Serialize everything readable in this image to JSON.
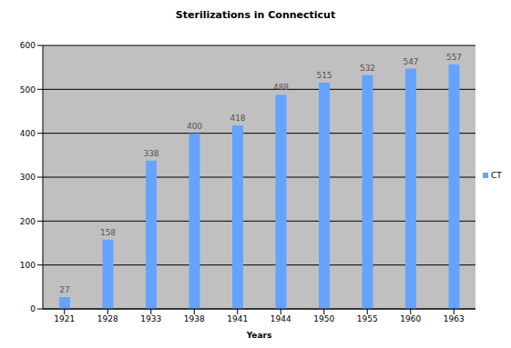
{
  "chart_data": {
    "type": "bar",
    "title": "Sterilizations in Connecticut",
    "xlabel": "Years",
    "categories": [
      "1921",
      "1928",
      "1933",
      "1938",
      "1941",
      "1944",
      "1950",
      "1955",
      "1960",
      "1963"
    ],
    "series": [
      {
        "name": "CT",
        "color": "#66a3ff",
        "values": [
          27,
          158,
          338,
          400,
          418,
          488,
          515,
          532,
          547,
          557
        ]
      }
    ],
    "ylim": [
      0,
      600
    ],
    "yticks": [
      0,
      100,
      200,
      300,
      400,
      500,
      600
    ],
    "grid": true,
    "legend": "right",
    "data_labels": true
  }
}
